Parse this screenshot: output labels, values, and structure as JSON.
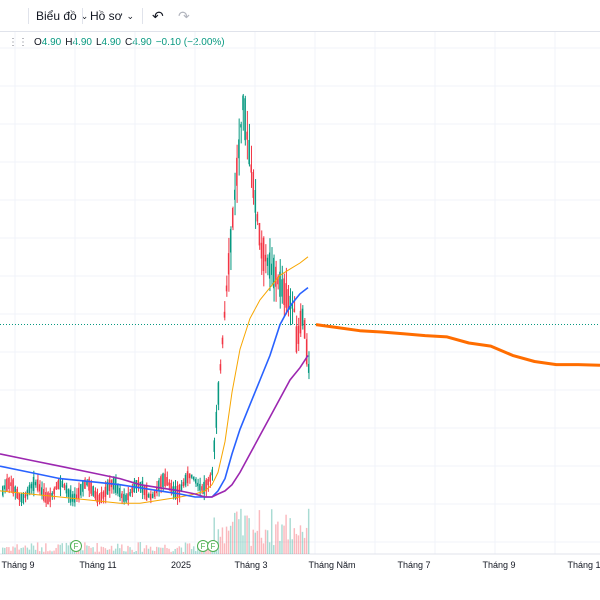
{
  "toolbar": {
    "chart_label": "Biểu đồ",
    "profile_label": "Hồ sơ",
    "undo_icon": "undo-icon",
    "redo_icon": "redo-icon"
  },
  "legend": {
    "o_label": "O",
    "o_value": "4.90",
    "h_label": "H",
    "h_value": "4.90",
    "l_label": "L",
    "l_value": "4.90",
    "c_label": "C",
    "c_value": "4.90",
    "change": "−0.10 (−2.00%)"
  },
  "colors": {
    "up": "#089981",
    "down": "#f23645",
    "ma_fast": "#f7a600",
    "ma_mid": "#2962ff",
    "ma_slow": "#9c27b0",
    "forecast": "#ff6d00",
    "price_line": "#089981"
  },
  "chart_data": {
    "type": "line",
    "x_axis_ticks": [
      "Tháng 9",
      "Tháng 11",
      "2025",
      "Tháng 3",
      "Tháng Năm",
      "Tháng 7",
      "Tháng 9",
      "Tháng 1"
    ],
    "dividend_markers": [
      "F",
      "F",
      "F"
    ],
    "current_price": 4.9,
    "series": [
      {
        "values": [
          2.2,
          2.15,
          2.1,
          2.05,
          2.0,
          2.0,
          2.05,
          2.1,
          2.15,
          2.2,
          2.3,
          2.5,
          3.0,
          3.8,
          4.5,
          5.0,
          5.3,
          5.5,
          5.7,
          5.8,
          5.9,
          6.0
        ]
      },
      {
        "values": [
          2.6,
          2.5,
          2.4,
          2.35,
          2.3,
          2.25,
          2.2,
          2.15,
          2.1,
          2.1,
          2.1,
          2.2,
          2.4,
          2.8,
          3.2,
          3.6,
          4.0,
          4.4,
          4.9,
          5.2,
          5.4,
          5.5
        ]
      },
      {
        "values": [
          2.8,
          2.7,
          2.6,
          2.5,
          2.4,
          2.3,
          2.25,
          2.2,
          2.15,
          2.1,
          2.1,
          2.15,
          2.2,
          2.3,
          2.5,
          2.8,
          3.1,
          3.4,
          3.7,
          4.0,
          4.2,
          4.4
        ]
      },
      {
        "values": [
          4.9,
          4.85,
          4.8,
          4.78,
          4.75,
          4.72,
          4.7,
          4.6,
          4.55,
          4.4,
          4.3,
          4.25,
          4.25,
          4.24
        ]
      }
    ]
  }
}
